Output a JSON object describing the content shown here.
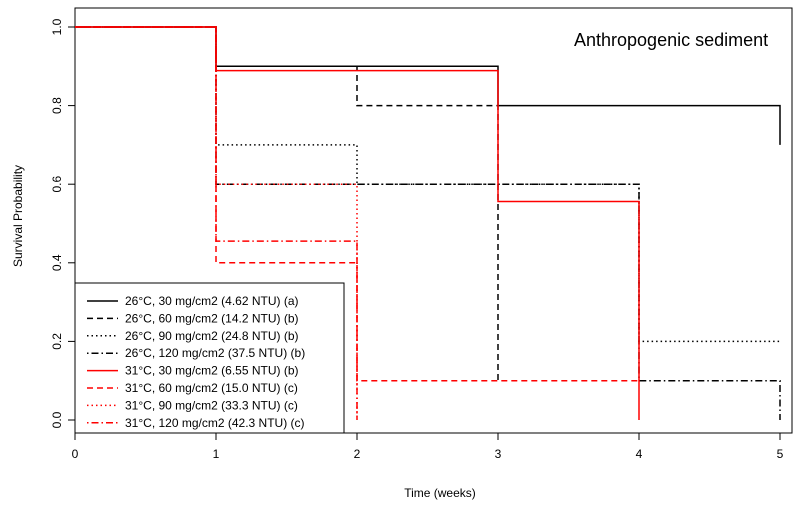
{
  "chart_data": {
    "type": "line",
    "step": true,
    "title": "Anthropogenic sediment",
    "xlabel": "Time (weeks)",
    "ylabel": "Survival Probability",
    "xlim": [
      0,
      5
    ],
    "ylim": [
      0,
      1
    ],
    "x_ticks": [
      "0",
      "1",
      "2",
      "3",
      "4",
      "5"
    ],
    "y_ticks": [
      "0.0",
      "0.2",
      "0.4",
      "0.6",
      "0.8",
      "1.0"
    ],
    "grid": false,
    "legend_position": "bottom-left",
    "series": [
      {
        "name": "26°C,  30 mg/cm2 (4.62 NTU)  (a)",
        "color": "#000000",
        "dash": "solid",
        "x": [
          0,
          1,
          3,
          5
        ],
        "y": [
          1.0,
          0.9,
          0.8,
          0.8
        ],
        "end": [
          5,
          0.7
        ]
      },
      {
        "name": "26°C,  60 mg/cm2 (14.2 NTU)  (b)",
        "color": "#000000",
        "dash": "dashed",
        "x": [
          0,
          1,
          2,
          3,
          3
        ],
        "y": [
          1.0,
          0.9,
          0.8,
          0.1,
          0.1
        ],
        "end": [
          3,
          0.1
        ]
      },
      {
        "name": "26°C,  90 mg/cm2 (24.8 NTU)  (b)",
        "color": "#000000",
        "dash": "dotted",
        "x": [
          0,
          1,
          2,
          4,
          5
        ],
        "y": [
          1.0,
          0.7,
          0.6,
          0.2,
          0.2
        ],
        "end": [
          5,
          0.2
        ]
      },
      {
        "name": "26°C, 120 mg/cm2 (37.5 NTU)  (b)",
        "color": "#000000",
        "dash": "dotdash",
        "x": [
          0,
          1,
          4,
          5
        ],
        "y": [
          1.0,
          0.6,
          0.1,
          0.1
        ],
        "end": [
          5,
          0.0
        ]
      },
      {
        "name": "31°C,  30 mg/cm2 (6.55 NTU)  (b)",
        "color": "#ff0000",
        "dash": "solid",
        "x": [
          0,
          1,
          3,
          4
        ],
        "y": [
          1.0,
          0.889,
          0.556,
          0.556
        ],
        "end": [
          4,
          0.0
        ]
      },
      {
        "name": "31°C,  60 mg/cm2 (15.0 NTU)  (c)",
        "color": "#ff0000",
        "dash": "dashed",
        "x": [
          0,
          1,
          2,
          4
        ],
        "y": [
          1.0,
          0.4,
          0.1,
          0.1
        ],
        "end": [
          4,
          0.1
        ]
      },
      {
        "name": "31°C,  90 mg/cm2 (33.3 NTU)  (c)",
        "color": "#ff0000",
        "dash": "dotted",
        "x": [
          0,
          1,
          2
        ],
        "y": [
          1.0,
          0.6,
          0.6
        ],
        "end": [
          2,
          0.0
        ]
      },
      {
        "name": "31°C, 120 mg/cm2 (42.3 NTU)  (c)",
        "color": "#ff0000",
        "dash": "dotdash",
        "x": [
          0,
          1,
          2
        ],
        "y": [
          1.0,
          0.455,
          0.455
        ],
        "end": [
          2,
          0.0
        ]
      }
    ]
  }
}
